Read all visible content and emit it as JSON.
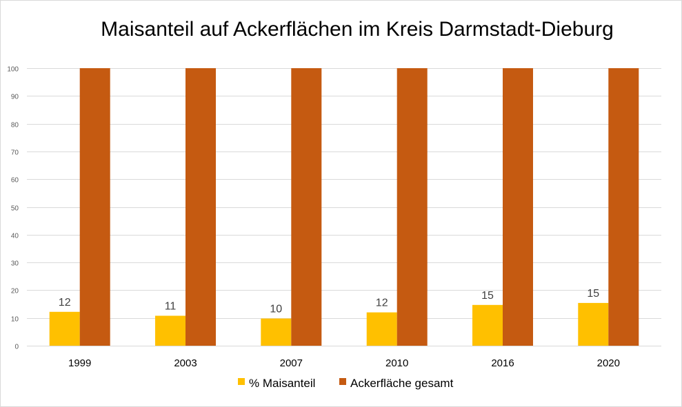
{
  "chart_data": {
    "type": "bar",
    "title": "Maisanteil auf Ackerflächen im Kreis Darmstadt-Dieburg",
    "xlabel": "",
    "ylabel": "",
    "categories": [
      "1999",
      "2003",
      "2007",
      "2010",
      "2016",
      "2020"
    ],
    "series": [
      {
        "name": "% Maisanteil",
        "color": "#FFC000",
        "values": [
          12.2,
          10.8,
          9.8,
          12,
          14.7,
          15.4
        ],
        "labels": [
          "12",
          "11",
          "10",
          "12",
          "15",
          "15"
        ]
      },
      {
        "name": "Ackerfläche gesamt",
        "color": "#C55A11",
        "values": [
          100,
          100,
          100,
          100,
          100,
          100
        ]
      }
    ],
    "ylim": [
      0,
      100
    ],
    "yticks": [
      "0",
      "10",
      "20",
      "30",
      "40",
      "50",
      "60",
      "70",
      "80",
      "90",
      "100"
    ],
    "grid": true,
    "legend_position": "bottom"
  }
}
